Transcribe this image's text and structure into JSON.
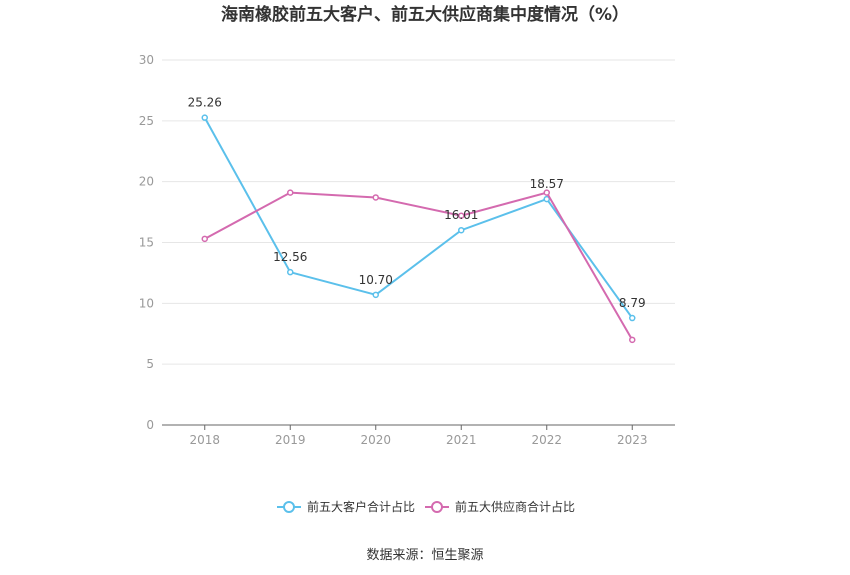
{
  "chart_data": {
    "type": "line",
    "title": "海南橡胶前五大客户、前五大供应商集中度情况（%）",
    "categories": [
      "2018",
      "2019",
      "2020",
      "2021",
      "2022",
      "2023"
    ],
    "ylim": [
      0,
      30
    ],
    "yticks": [
      "0",
      "5",
      "10",
      "15",
      "20",
      "25",
      "30"
    ],
    "grid": true,
    "legend_position": "bottom",
    "series": [
      {
        "name": "前五大客户合计占比",
        "color": "#5bc0eb",
        "values": [
          25.26,
          12.56,
          10.7,
          16.01,
          18.57,
          8.79
        ],
        "labels": [
          "25.26",
          "12.56",
          "10.70",
          "16.01",
          "18.57",
          "8.79"
        ]
      },
      {
        "name": "前五大供应商合计占比",
        "color": "#d46aaf",
        "values": [
          15.3,
          19.1,
          18.7,
          17.2,
          19.1,
          7.0
        ]
      }
    ],
    "source": "数据来源：恒生聚源"
  }
}
